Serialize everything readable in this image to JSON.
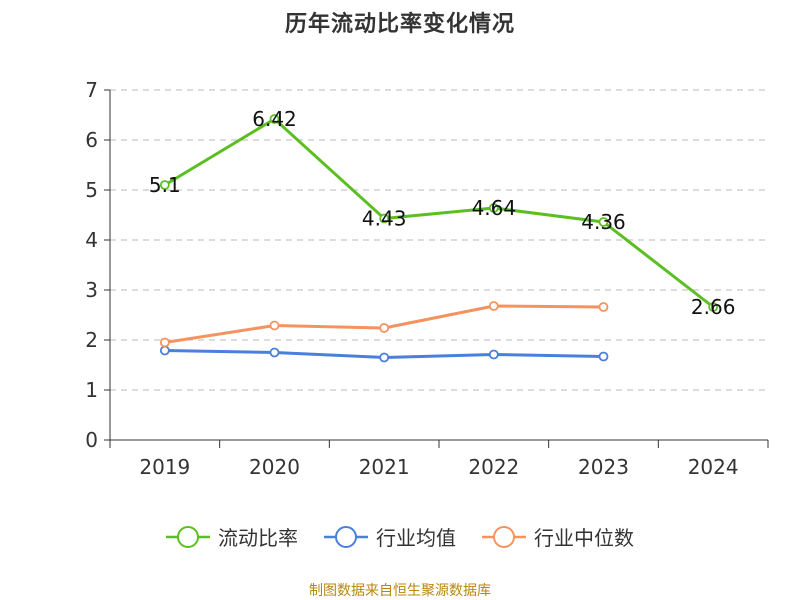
{
  "chart_data": {
    "type": "line",
    "title": "历年流动比率变化情况",
    "categories": [
      "2019",
      "2020",
      "2021",
      "2022",
      "2023",
      "2024"
    ],
    "ylim": [
      0,
      7
    ],
    "yticks": [
      0,
      1,
      2,
      3,
      4,
      5,
      6,
      7
    ],
    "grid": "horizontal-dashed",
    "legend_position": "bottom",
    "series": [
      {
        "name": "流动比率",
        "color": "#5bbf21",
        "values": [
          5.1,
          6.42,
          4.43,
          4.64,
          4.36,
          2.66
        ],
        "labels": [
          "5.1",
          "6.42",
          "4.43",
          "4.64",
          "4.36",
          "2.66"
        ],
        "show_labels": true
      },
      {
        "name": "行业均值",
        "color": "#4a7fdc",
        "values": [
          1.79,
          1.75,
          1.65,
          1.71,
          1.67,
          null
        ],
        "show_labels": false
      },
      {
        "name": "行业中位数",
        "color": "#f5935f",
        "values": [
          1.95,
          2.29,
          2.24,
          2.68,
          2.66,
          null
        ],
        "show_labels": false
      }
    ]
  },
  "footer": {
    "source": "制图数据来自恒生聚源数据库"
  }
}
